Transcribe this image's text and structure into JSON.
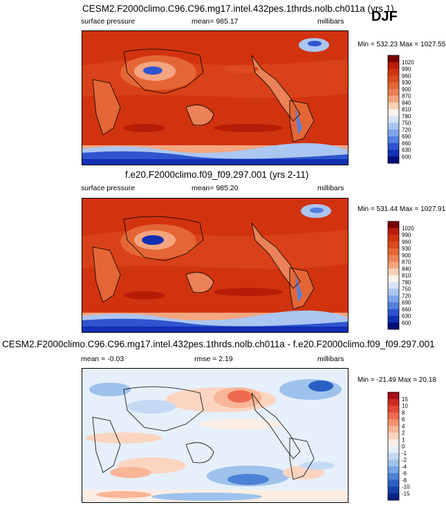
{
  "season": "DJF",
  "chart_data": [
    {
      "type": "heatmap",
      "title": "CESM2.F2000climo.C96.C96.mg17.intel.432pes.1thrds.nolb.ch011a (yrs 1)",
      "variable": "surface pressure",
      "mean_label": "mean= 985.17",
      "units": "millibars",
      "minmax_label": "Min = 532.23 Max = 1027.55",
      "min": 532.23,
      "max": 1027.55,
      "colorbar": {
        "levels": [
          "1020",
          "990",
          "960",
          "930",
          "900",
          "870",
          "840",
          "810",
          "780",
          "750",
          "720",
          "690",
          "660",
          "630",
          "600"
        ],
        "colors": [
          "#7a0000",
          "#b71c08",
          "#d1330f",
          "#dc4b20",
          "#e46636",
          "#ec8257",
          "#f3a57f",
          "#fad1b7",
          "#fbf3ec",
          "#d7e3f7",
          "#abc6f1",
          "#7ea5ea",
          "#557fe0",
          "#2f54cf",
          "#1130b4",
          "#00107a"
        ]
      }
    },
    {
      "type": "heatmap",
      "title": "f.e20.F2000climo.f09_f09.297.001 (yrs 2-11)",
      "variable": "surface pressure",
      "mean_label": "mean= 985.20",
      "units": "millibars",
      "minmax_label": "Min = 531.44 Max = 1027.91",
      "min": 531.44,
      "max": 1027.91,
      "colorbar": {
        "levels": [
          "1020",
          "990",
          "960",
          "930",
          "900",
          "870",
          "840",
          "810",
          "780",
          "750",
          "720",
          "690",
          "660",
          "630",
          "600"
        ],
        "colors": [
          "#7a0000",
          "#b71c08",
          "#d1330f",
          "#dc4b20",
          "#e46636",
          "#ec8257",
          "#f3a57f",
          "#fad1b7",
          "#fbf3ec",
          "#d7e3f7",
          "#abc6f1",
          "#7ea5ea",
          "#557fe0",
          "#2f54cf",
          "#1130b4",
          "#00107a"
        ]
      }
    },
    {
      "type": "heatmap",
      "title": "CESM2.F2000climo.C96.C96.mg17.intel.432pes.1thrds.nolb.ch011a - f.e20.F2000climo.f09_f09.297.001",
      "mean_label": "mean =  -0.03",
      "rmse_label": "rmse =   2.19",
      "units": "millibars",
      "minmax_label": "Min = -21.49 Max =  20.18",
      "min": -21.49,
      "max": 20.18,
      "colorbar": {
        "levels": [
          "15",
          "10",
          "8",
          "6",
          "4",
          "2",
          "1",
          "0",
          "-1",
          "-2",
          "-4",
          "-6",
          "-8",
          "-10",
          "-15"
        ],
        "colors": [
          "#a50f15",
          "#cb2a21",
          "#e34a33",
          "#ef6b4f",
          "#f5916f",
          "#f9b597",
          "#fcd5c1",
          "#fdeee5",
          "#e6f0fb",
          "#c4daf4",
          "#9ec2ec",
          "#76a5e2",
          "#4b82d6",
          "#2a5fc4",
          "#1740a8",
          "#0a2483"
        ]
      }
    }
  ]
}
